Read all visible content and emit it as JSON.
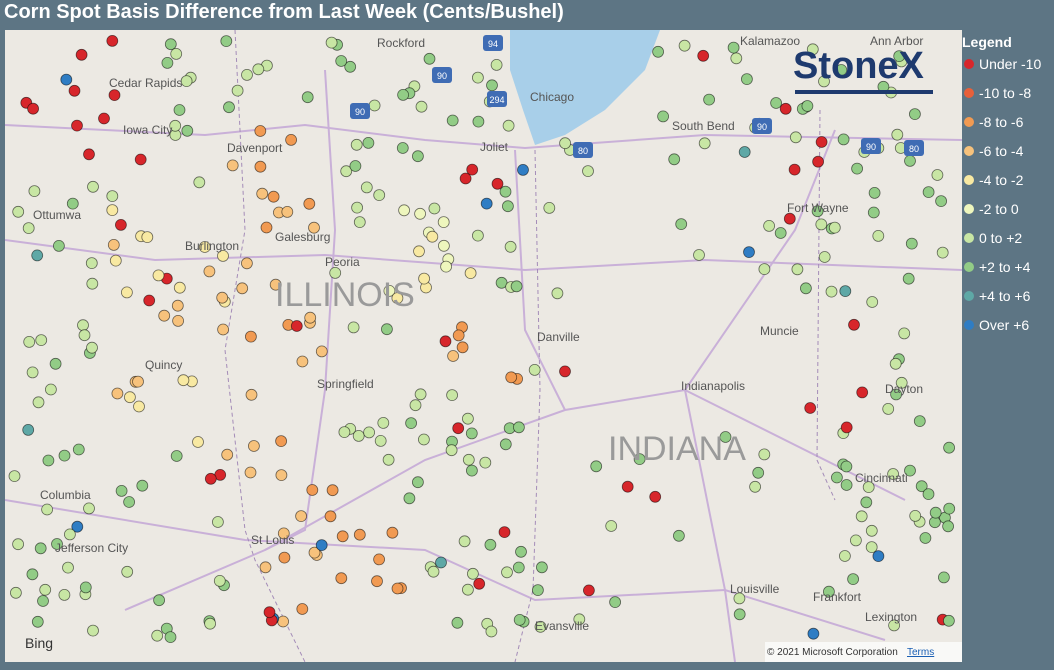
{
  "title": "Corn Spot Basis Difference from Last Week (Cents/Bushel)",
  "logo": "StoneX",
  "legend": {
    "title": "Legend",
    "items": [
      {
        "label": "Under -10",
        "color": "#d7262b"
      },
      {
        "label": "-10 to -8",
        "color": "#e8603a"
      },
      {
        "label": "-8 to -6",
        "color": "#f19a52"
      },
      {
        "label": "-6 to -4",
        "color": "#f7c27c"
      },
      {
        "label": "-4 to -2",
        "color": "#f8e9a2"
      },
      {
        "label": "-2 to 0",
        "color": "#eef6bd"
      },
      {
        "label": "0 to +2",
        "color": "#c8e6a4"
      },
      {
        "label": "+2 to +4",
        "color": "#92cc86"
      },
      {
        "label": "+4 to +6",
        "color": "#5ea8a6"
      },
      {
        "label": "Over +6",
        "color": "#2f7dc4"
      }
    ]
  },
  "map": {
    "places": [
      "Rockford",
      "Kalamazoo",
      "Ann Arbor",
      "Cedar Rapids",
      "Chicago",
      "Iowa City",
      "Davenport",
      "Joliet",
      "South Bend",
      "Ottumwa",
      "Galesburg",
      "Burlington",
      "Peoria",
      "Fort Wayne",
      "Muncie",
      "Danville",
      "Quincy",
      "Indianapolis",
      "Springfield",
      "Dayton",
      "Columbia",
      "Cincinnati",
      "Jefferson City",
      "St Louis",
      "Louisville",
      "Frankfort",
      "Lexington",
      "Evansville"
    ],
    "states": [
      "ILLINOIS",
      "INDIANA"
    ],
    "highways": [
      "94",
      "90",
      "294",
      "90",
      "80",
      "90",
      "90",
      "80"
    ],
    "provider": "Bing",
    "copyright": "© 2021 Microsoft Corporation",
    "terms": "Terms"
  }
}
